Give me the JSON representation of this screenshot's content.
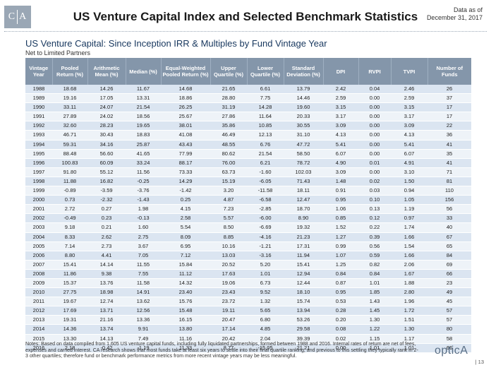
{
  "header": {
    "logo_text": "C A",
    "title": "US Venture Capital Index and Selected Benchmark Statistics",
    "date_line1": "Data as of",
    "date_line2": "December 31, 2017"
  },
  "section": {
    "title": "US Venture Capital: Since Inception IRR & Multiples by Fund Vintage Year",
    "subtitle": "Net to Limited Partners"
  },
  "table": {
    "columns": [
      "Vintage Year",
      "Pooled Return (%)",
      "Arithmetic Mean (%)",
      "Median (%)",
      "Equal-Weighted Pooled Return (%)",
      "Upper Quartile (%)",
      "Lower Quartile (%)",
      "Standard Deviation (%)",
      "DPI",
      "RVPI",
      "TVPI",
      "Number of Funds"
    ],
    "rows": [
      [
        "1988",
        "18.68",
        "14.26",
        "11.67",
        "14.68",
        "21.65",
        "6.61",
        "13.79",
        "2.42",
        "0.04",
        "2.46",
        "26"
      ],
      [
        "1989",
        "19.16",
        "17.05",
        "13.31",
        "18.86",
        "28.80",
        "7.75",
        "14.46",
        "2.59",
        "0.00",
        "2.59",
        "37"
      ],
      [
        "1990",
        "33.11",
        "24.07",
        "21.54",
        "26.25",
        "31.19",
        "14.28",
        "19.60",
        "3.15",
        "0.00",
        "3.15",
        "17"
      ],
      [
        "1991",
        "27.89",
        "24.02",
        "18.56",
        "25.67",
        "27.86",
        "11.64",
        "20.33",
        "3.17",
        "0.00",
        "3.17",
        "17"
      ],
      [
        "1992",
        "32.60",
        "28.23",
        "19.65",
        "38.01",
        "35.86",
        "10.85",
        "30.55",
        "3.09",
        "0.00",
        "3.09",
        "22"
      ],
      [
        "1993",
        "46.71",
        "30.43",
        "18.83",
        "41.08",
        "46.49",
        "12.13",
        "31.10",
        "4.13",
        "0.00",
        "4.13",
        "36"
      ],
      [
        "1994",
        "59.31",
        "34.16",
        "25.87",
        "43.43",
        "48.55",
        "6.76",
        "47.72",
        "5.41",
        "0.00",
        "5.41",
        "41"
      ],
      [
        "1995",
        "88.48",
        "56.60",
        "41.65",
        "77.99",
        "80.62",
        "21.54",
        "58.50",
        "6.07",
        "0.00",
        "6.07",
        "35"
      ],
      [
        "1996",
        "100.83",
        "60.09",
        "33.24",
        "88.17",
        "76.00",
        "6.21",
        "78.72",
        "4.90",
        "0.01",
        "4.91",
        "41"
      ],
      [
        "1997",
        "91.80",
        "55.12",
        "11.56",
        "73.33",
        "63.73",
        "-1.60",
        "102.03",
        "3.09",
        "0.00",
        "3.10",
        "71"
      ],
      [
        "1998",
        "11.88",
        "16.82",
        "-0.25",
        "14.29",
        "15.19",
        "-6.05",
        "71.43",
        "1.48",
        "0.02",
        "1.50",
        "81"
      ],
      [
        "1999",
        "-0.89",
        "-3.59",
        "-3.76",
        "-1.42",
        "3.20",
        "-11.58",
        "18.11",
        "0.91",
        "0.03",
        "0.94",
        "110"
      ],
      [
        "2000",
        "0.73",
        "-2.32",
        "-1.43",
        "0.25",
        "4.87",
        "-6.58",
        "12.47",
        "0.95",
        "0.10",
        "1.05",
        "156"
      ],
      [
        "2001",
        "2.72",
        "0.27",
        "1.98",
        "4.15",
        "7.23",
        "-2.85",
        "18.70",
        "1.06",
        "0.13",
        "1.19",
        "56"
      ],
      [
        "2002",
        "-0.49",
        "0.23",
        "-0.13",
        "2.58",
        "5.57",
        "-6.00",
        "8.90",
        "0.85",
        "0.12",
        "0.97",
        "33"
      ],
      [
        "2003",
        "9.18",
        "0.21",
        "1.60",
        "5.54",
        "8.50",
        "-6.69",
        "19.32",
        "1.52",
        "0.22",
        "1.74",
        "40"
      ],
      [
        "2004",
        "8.33",
        "2.62",
        "2.75",
        "8.09",
        "8.85",
        "-4.16",
        "21.23",
        "1.27",
        "0.39",
        "1.66",
        "67"
      ],
      [
        "2005",
        "7.14",
        "2.73",
        "3.67",
        "6.95",
        "10.16",
        "-1.21",
        "17.31",
        "0.99",
        "0.56",
        "1.54",
        "65"
      ],
      [
        "2006",
        "8.80",
        "4.41",
        "7.05",
        "7.12",
        "13.03",
        "-3.16",
        "11.94",
        "1.07",
        "0.59",
        "1.66",
        "84"
      ],
      [
        "2007",
        "15.41",
        "14.14",
        "11.55",
        "15.84",
        "20.52",
        "5.20",
        "15.41",
        "1.25",
        "0.82",
        "2.06",
        "69"
      ],
      [
        "2008",
        "11.86",
        "9.38",
        "7.55",
        "11.12",
        "17.63",
        "1.01",
        "12.94",
        "0.84",
        "0.84",
        "1.67",
        "66"
      ],
      [
        "2009",
        "15.37",
        "13.76",
        "11.58",
        "14.32",
        "19.06",
        "6.73",
        "12.44",
        "0.87",
        "1.01",
        "1.88",
        "23"
      ],
      [
        "2010",
        "27.75",
        "18.98",
        "14.91",
        "23.40",
        "23.43",
        "9.52",
        "18.10",
        "0.95",
        "1.85",
        "2.80",
        "49"
      ],
      [
        "2011",
        "19.67",
        "12.74",
        "13.62",
        "15.76",
        "23.72",
        "1.32",
        "15.74",
        "0.53",
        "1.43",
        "1.96",
        "45"
      ],
      [
        "2012",
        "17.69",
        "13.71",
        "12.56",
        "15.48",
        "19.11",
        "5.65",
        "13.94",
        "0.28",
        "1.45",
        "1.72",
        "57"
      ],
      [
        "2013",
        "19.31",
        "21.16",
        "13.36",
        "16.15",
        "20.47",
        "6.80",
        "53.26",
        "0.20",
        "1.30",
        "1.51",
        "57"
      ],
      [
        "2014",
        "14.36",
        "13.74",
        "9.91",
        "13.80",
        "17.14",
        "4.85",
        "29.58",
        "0.08",
        "1.22",
        "1.30",
        "80"
      ],
      [
        "2015",
        "13.30",
        "14.13",
        "7.49",
        "11.16",
        "20.42",
        "2.04",
        "39.39",
        "0.02",
        "1.15",
        "1.17",
        "58"
      ],
      [
        "2016",
        "2.18",
        "-0.42",
        "-1.19",
        "11.33",
        "8.77",
        "-15.05",
        "21.21",
        "0.00",
        "1.01",
        "1.01",
        "66"
      ]
    ]
  },
  "notes": "Notes: Based on data compiled from 1,605 US venture capital funds, including fully liquidated partnerships, formed between 1988 and 2016. Internal rates of return are net of fees, expenses and carried interest. CA research shows that most funds take at least six years to settle into their final quartile ranking, and previous to this settling they typically rank in 2-3 other quartiles; therefore fund or benchmark performance metrics from more recent vintage years may be less meaningful.",
  "footer": {
    "brand": "opticA",
    "page": "| 13"
  },
  "colors": {
    "header_fill": "#8496aa",
    "row_odd": "#dbe5f1",
    "row_even": "#eef3f8",
    "subtitle": "#17375e"
  }
}
